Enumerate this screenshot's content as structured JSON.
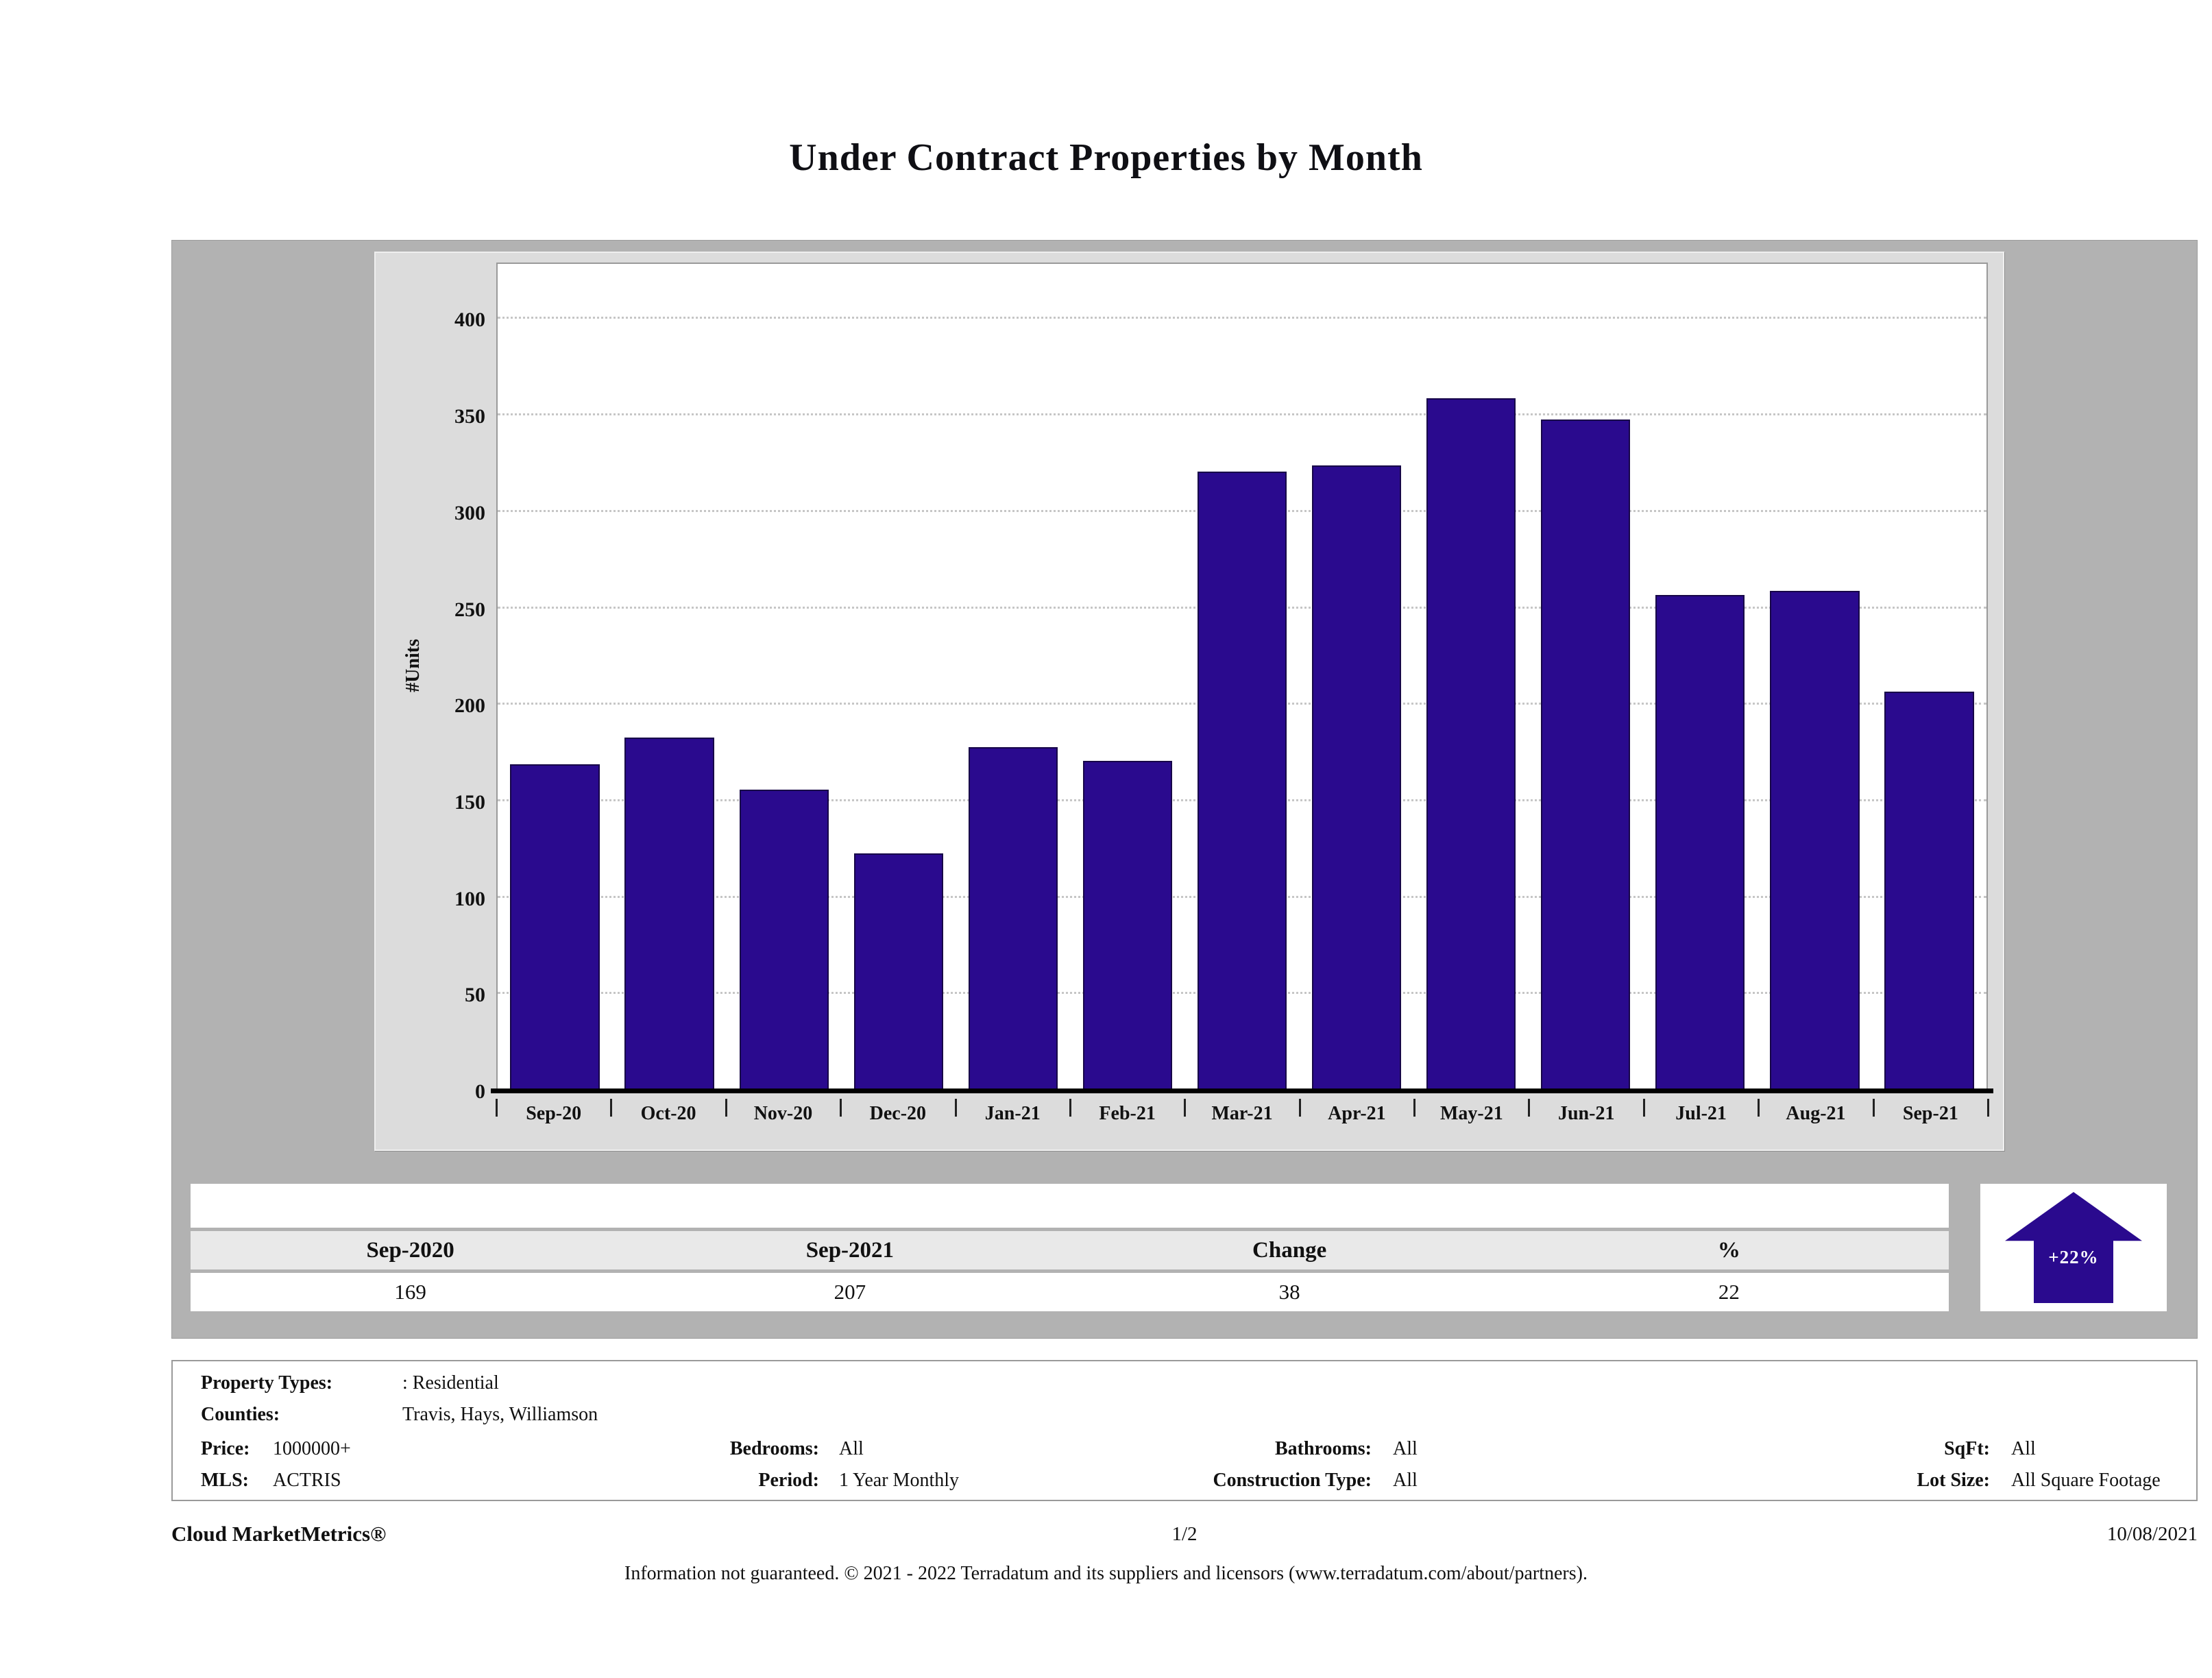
{
  "title": "Under Contract Properties by Month",
  "chart_data": {
    "type": "bar",
    "categories": [
      "Sep-20",
      "Oct-20",
      "Nov-20",
      "Dec-20",
      "Jan-21",
      "Feb-21",
      "Mar-21",
      "Apr-21",
      "May-21",
      "Jun-21",
      "Jul-21",
      "Aug-21",
      "Sep-21"
    ],
    "values": [
      169,
      183,
      156,
      123,
      178,
      171,
      321,
      324,
      359,
      348,
      257,
      259,
      207
    ],
    "title": "Under Contract Properties by Month",
    "xlabel": "",
    "ylabel": "#Units",
    "ylim": [
      0,
      430
    ],
    "yticks": [
      0,
      50,
      100,
      150,
      200,
      250,
      300,
      350,
      400
    ],
    "grid": true,
    "bar_color": "#2a0a8e"
  },
  "summary": {
    "columns": [
      "Sep-2020",
      "Sep-2021",
      "Change",
      "%"
    ],
    "values": [
      "169",
      "207",
      "38",
      "22"
    ],
    "change_badge": "+22%"
  },
  "filters": {
    "property_types_label": "Property Types:",
    "property_types_value": ": Residential",
    "counties_label": "Counties:",
    "counties_value": "Travis, Hays, Williamson",
    "price_label": "Price:",
    "price_value": "1000000+",
    "mls_label": "MLS:",
    "mls_value": "ACTRIS",
    "bedrooms_label": "Bedrooms:",
    "bedrooms_value": "All",
    "period_label": "Period:",
    "period_value": "1 Year Monthly",
    "bathrooms_label": "Bathrooms:",
    "bathrooms_value": "All",
    "construction_label": "Construction Type:",
    "construction_value": "All",
    "sqft_label": "SqFt:",
    "sqft_value": "All",
    "lotsize_label": "Lot Size:",
    "lotsize_value": "All Square Footage"
  },
  "footer": {
    "brand": "Cloud MarketMetrics®",
    "page": "1/2",
    "date": "10/08/2021",
    "disclaimer": "Information not guaranteed. © 2021 - 2022 Terradatum and its suppliers and licensors (www.terradatum.com/about/partners)."
  },
  "colors": {
    "accent": "#2a0a8e",
    "frame_gray": "#b2b2b2",
    "panel_gray": "#dcdcdc",
    "header_row_gray": "#e9e9e9"
  }
}
